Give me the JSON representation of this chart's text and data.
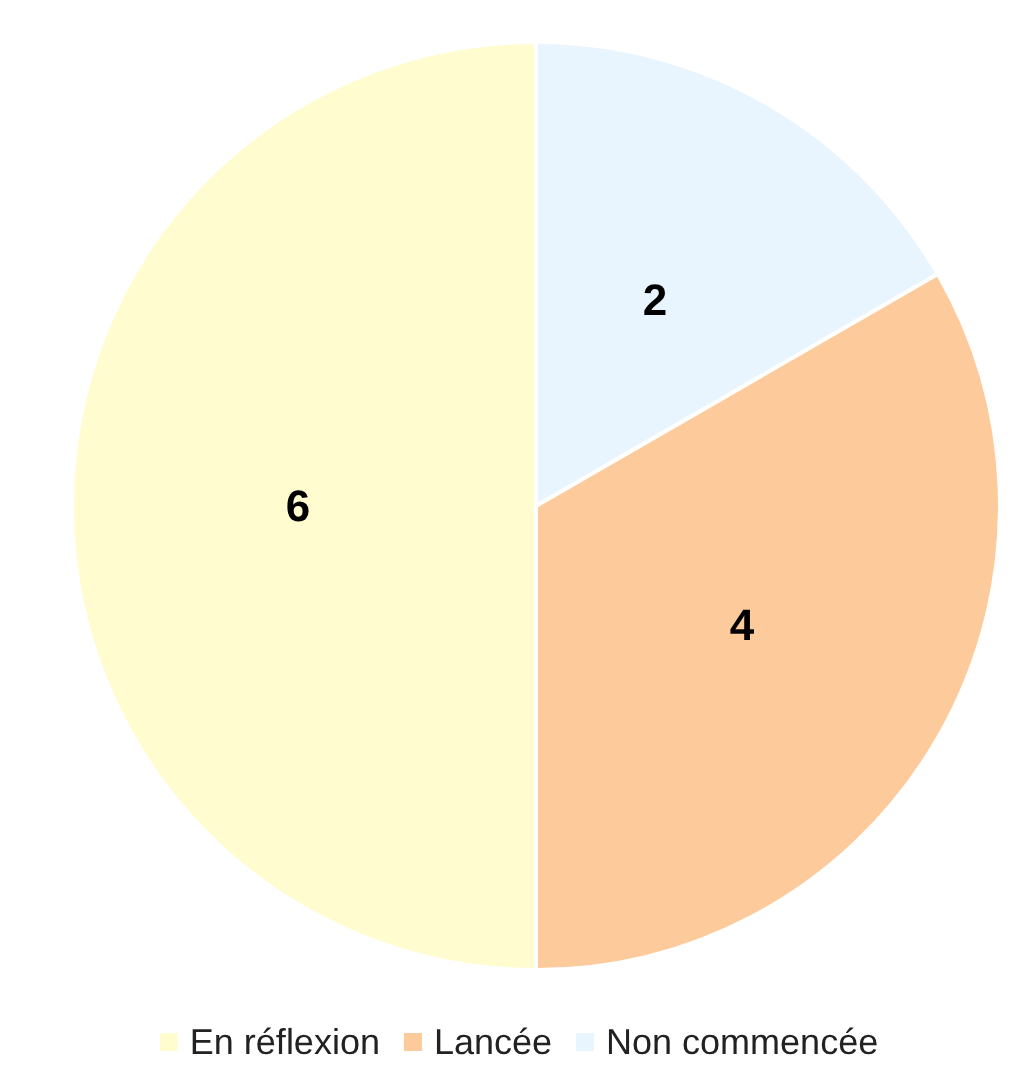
{
  "chart_data": {
    "type": "pie",
    "categories": [
      "Non commencée",
      "Lancée",
      "En réflexion"
    ],
    "values": [
      2,
      4,
      6
    ],
    "colors": [
      "#e8f5fe",
      "#fdcb9b",
      "#fffdd0"
    ],
    "data_labels": true,
    "legend": "bottom"
  }
}
